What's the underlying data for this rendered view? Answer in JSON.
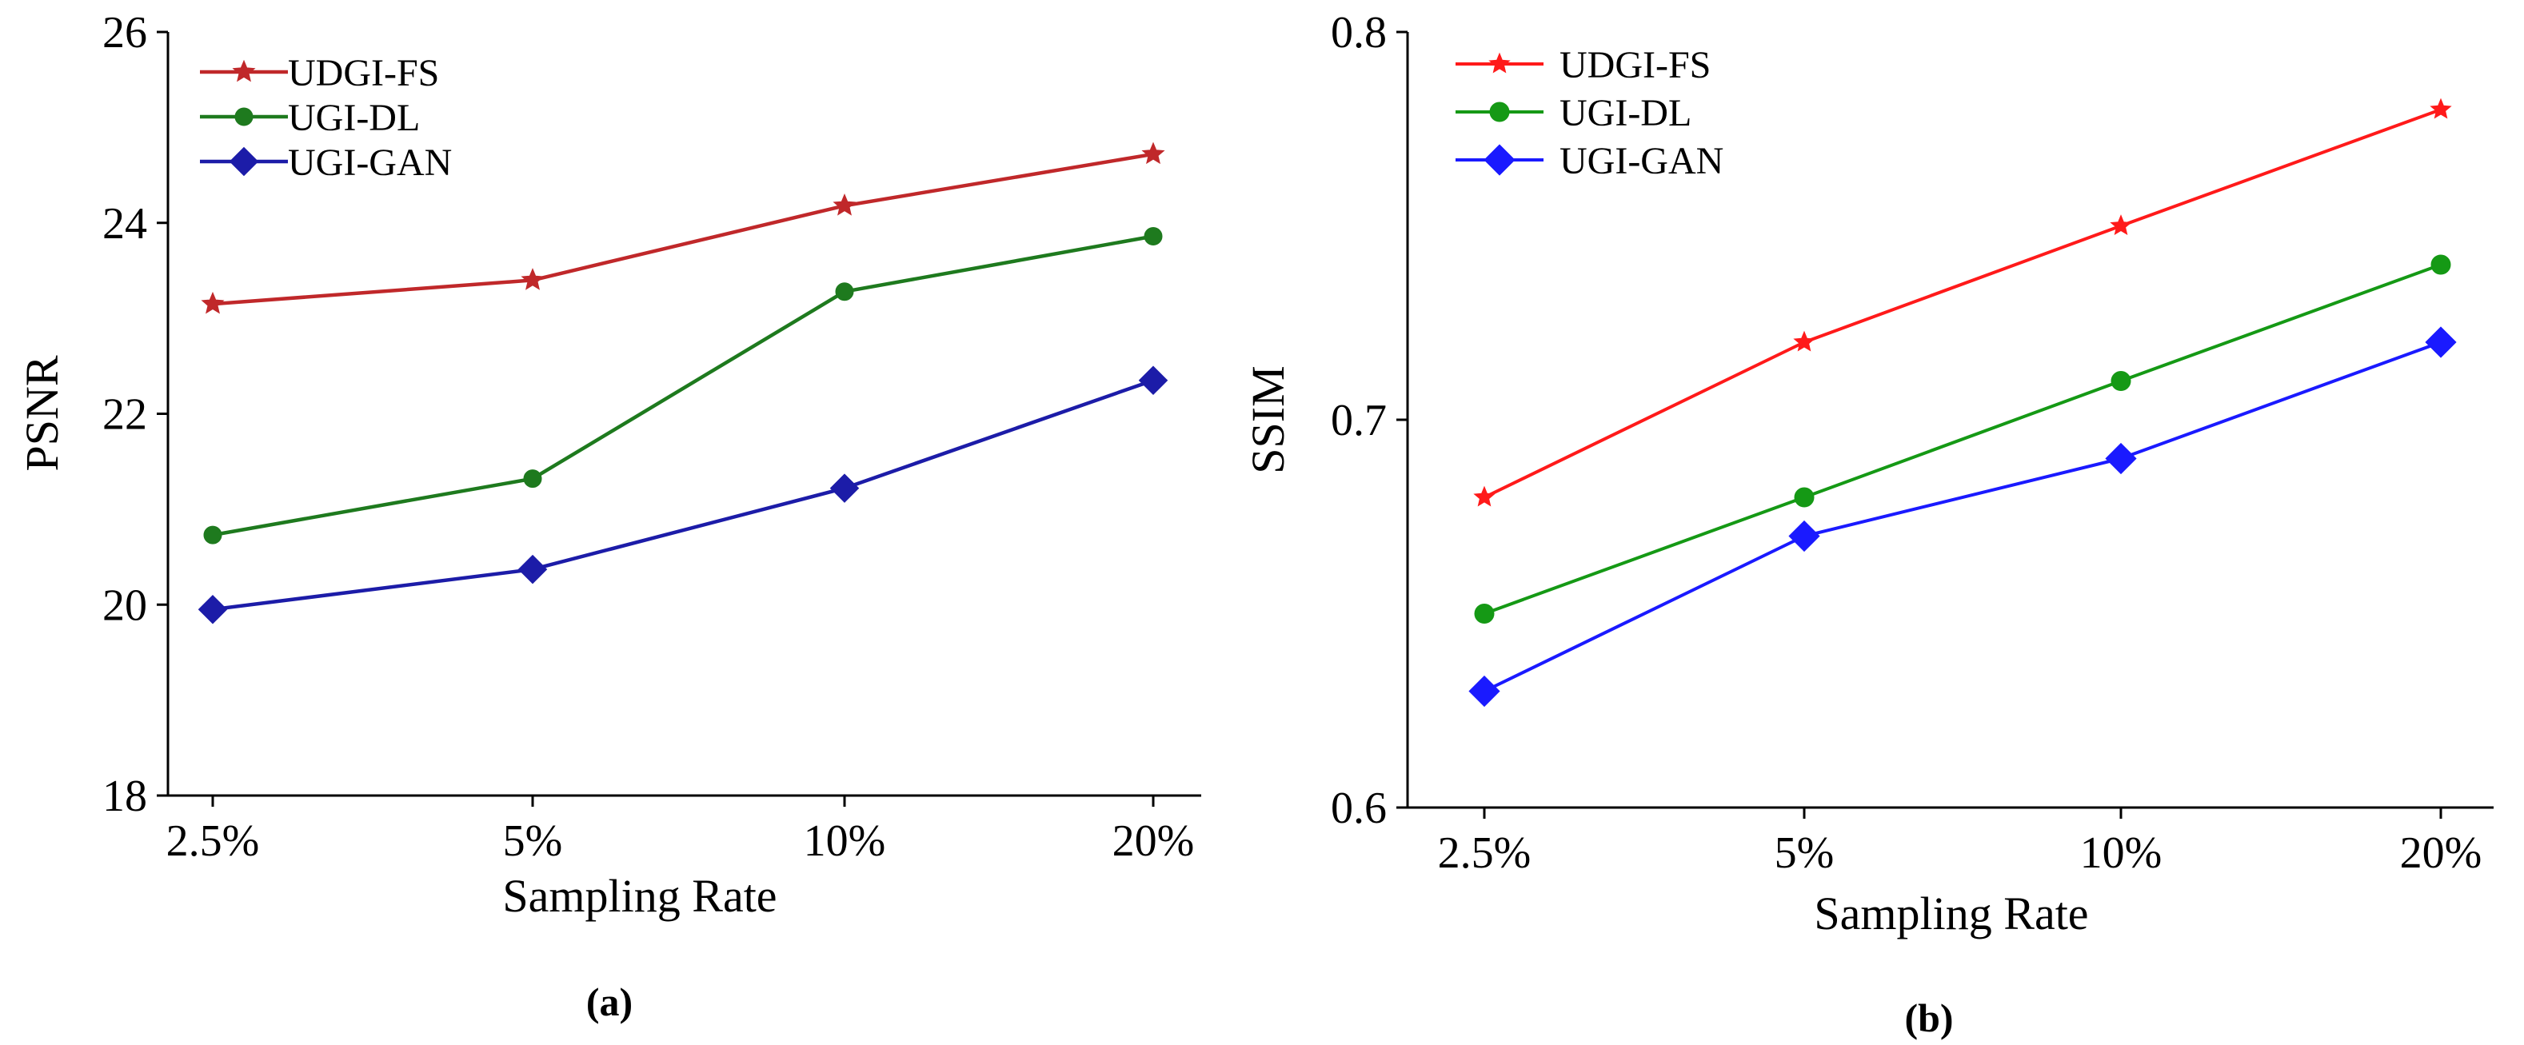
{
  "chart_data": [
    {
      "type": "line",
      "panel_label": "(a)",
      "xlabel": "Sampling Rate",
      "ylabel": "PSNR",
      "categories": [
        "2.5%",
        "5%",
        "10%",
        "20%"
      ],
      "ylim": [
        18,
        26
      ],
      "yticks": [
        18,
        20,
        22,
        24,
        26
      ],
      "grid": false,
      "legend_position": "top-left",
      "series": [
        {
          "name": "UDGI-FS",
          "color": "#c0282a",
          "marker": "star",
          "values": [
            23.15,
            23.4,
            24.18,
            24.72
          ]
        },
        {
          "name": "UGI-DL",
          "color": "#1e7a1e",
          "marker": "circle",
          "values": [
            20.73,
            21.32,
            23.28,
            23.86
          ]
        },
        {
          "name": "UGI-GAN",
          "color": "#1c1ca8",
          "marker": "diamond",
          "values": [
            19.95,
            20.37,
            21.22,
            22.35
          ]
        }
      ]
    },
    {
      "type": "line",
      "panel_label": "(b)",
      "xlabel": "Sampling Rate",
      "ylabel": "SSIM",
      "categories": [
        "2.5%",
        "5%",
        "10%",
        "20%"
      ],
      "ylim": [
        0.6,
        0.8
      ],
      "yticks": [
        0.6,
        0.7,
        0.8
      ],
      "grid": false,
      "legend_position": "top-left",
      "series": [
        {
          "name": "UDGI-FS",
          "color": "#ff1a1a",
          "marker": "star",
          "values": [
            0.68,
            0.72,
            0.75,
            0.78
          ]
        },
        {
          "name": "UGI-DL",
          "color": "#159915",
          "marker": "circle",
          "values": [
            0.65,
            0.68,
            0.71,
            0.74
          ]
        },
        {
          "name": "UGI-GAN",
          "color": "#1a1aff",
          "marker": "diamond",
          "values": [
            0.63,
            0.67,
            0.69,
            0.72
          ]
        }
      ]
    }
  ]
}
